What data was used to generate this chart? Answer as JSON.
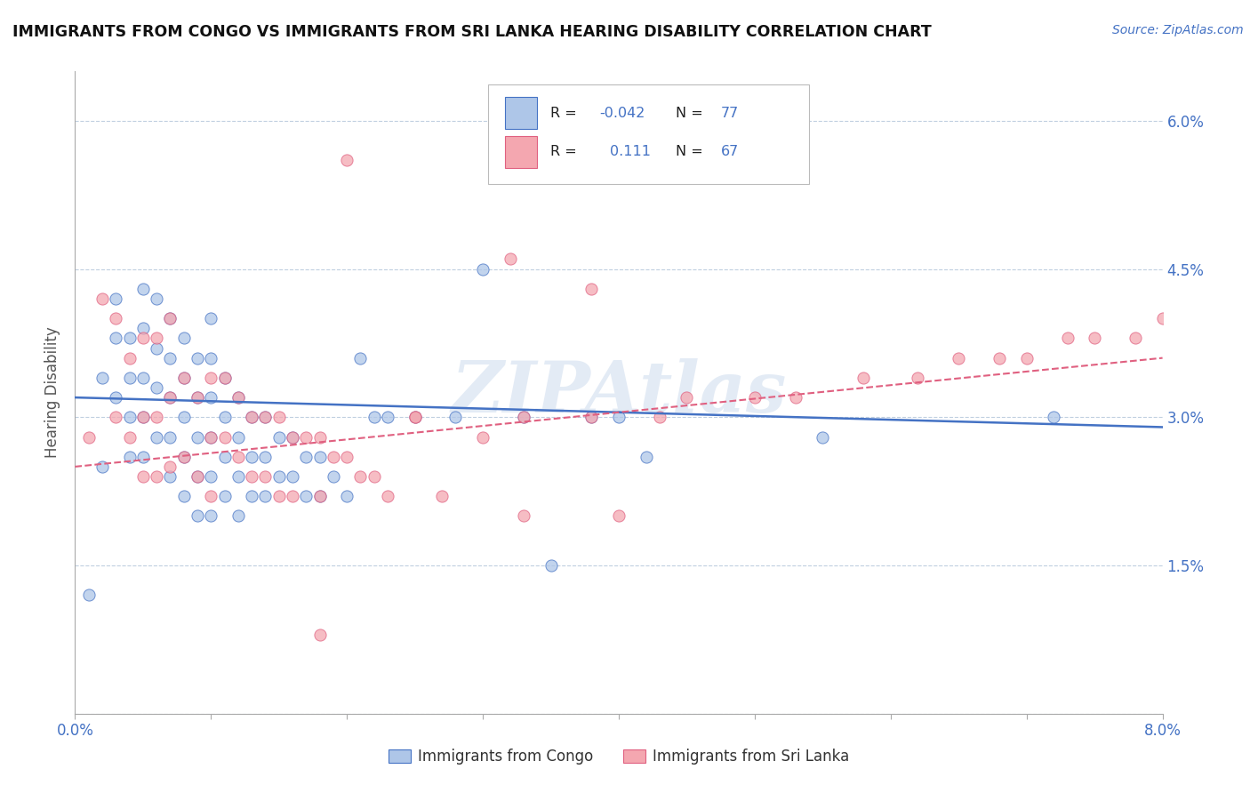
{
  "title": "IMMIGRANTS FROM CONGO VS IMMIGRANTS FROM SRI LANKA HEARING DISABILITY CORRELATION CHART",
  "source": "Source: ZipAtlas.com",
  "ylabel": "Hearing Disability",
  "xlim": [
    0.0,
    0.08
  ],
  "ylim": [
    0.0,
    0.065
  ],
  "ytick_positions": [
    0.0,
    0.015,
    0.03,
    0.045,
    0.06
  ],
  "yticklabels": [
    "",
    "1.5%",
    "3.0%",
    "4.5%",
    "6.0%"
  ],
  "congo_R": -0.042,
  "congo_N": 77,
  "srilanka_R": 0.111,
  "srilanka_N": 67,
  "congo_color": "#aec6e8",
  "srilanka_color": "#f4a7b0",
  "congo_line_color": "#4472c4",
  "srilanka_line_color": "#e06080",
  "background_color": "#ffffff",
  "watermark": "ZIPAtlas",
  "legend_label_congo": "Immigrants from Congo",
  "legend_label_srilanka": "Immigrants from Sri Lanka",
  "congo_x": [
    0.001,
    0.002,
    0.002,
    0.003,
    0.003,
    0.003,
    0.004,
    0.004,
    0.004,
    0.004,
    0.005,
    0.005,
    0.005,
    0.005,
    0.005,
    0.006,
    0.006,
    0.006,
    0.006,
    0.007,
    0.007,
    0.007,
    0.007,
    0.007,
    0.008,
    0.008,
    0.008,
    0.008,
    0.008,
    0.009,
    0.009,
    0.009,
    0.009,
    0.009,
    0.01,
    0.01,
    0.01,
    0.01,
    0.01,
    0.01,
    0.011,
    0.011,
    0.011,
    0.011,
    0.012,
    0.012,
    0.012,
    0.012,
    0.013,
    0.013,
    0.013,
    0.014,
    0.014,
    0.014,
    0.015,
    0.015,
    0.016,
    0.016,
    0.017,
    0.017,
    0.018,
    0.018,
    0.019,
    0.02,
    0.021,
    0.022,
    0.023,
    0.025,
    0.028,
    0.03,
    0.033,
    0.035,
    0.038,
    0.04,
    0.042,
    0.055,
    0.072
  ],
  "congo_y": [
    0.012,
    0.034,
    0.025,
    0.042,
    0.038,
    0.032,
    0.038,
    0.034,
    0.03,
    0.026,
    0.043,
    0.039,
    0.034,
    0.03,
    0.026,
    0.042,
    0.037,
    0.033,
    0.028,
    0.04,
    0.036,
    0.032,
    0.028,
    0.024,
    0.038,
    0.034,
    0.03,
    0.026,
    0.022,
    0.036,
    0.032,
    0.028,
    0.024,
    0.02,
    0.04,
    0.036,
    0.032,
    0.028,
    0.024,
    0.02,
    0.034,
    0.03,
    0.026,
    0.022,
    0.032,
    0.028,
    0.024,
    0.02,
    0.03,
    0.026,
    0.022,
    0.03,
    0.026,
    0.022,
    0.028,
    0.024,
    0.028,
    0.024,
    0.026,
    0.022,
    0.026,
    0.022,
    0.024,
    0.022,
    0.036,
    0.03,
    0.03,
    0.03,
    0.03,
    0.045,
    0.03,
    0.015,
    0.03,
    0.03,
    0.026,
    0.028,
    0.03
  ],
  "srilanka_x": [
    0.001,
    0.002,
    0.003,
    0.003,
    0.004,
    0.004,
    0.005,
    0.005,
    0.005,
    0.006,
    0.006,
    0.006,
    0.007,
    0.007,
    0.007,
    0.008,
    0.008,
    0.009,
    0.009,
    0.01,
    0.01,
    0.01,
    0.011,
    0.011,
    0.012,
    0.012,
    0.013,
    0.013,
    0.014,
    0.014,
    0.015,
    0.015,
    0.016,
    0.016,
    0.017,
    0.018,
    0.018,
    0.019,
    0.02,
    0.021,
    0.022,
    0.023,
    0.025,
    0.027,
    0.03,
    0.033,
    0.038,
    0.043,
    0.045,
    0.05,
    0.053,
    0.058,
    0.062,
    0.065,
    0.068,
    0.07,
    0.073,
    0.075,
    0.078,
    0.08,
    0.032,
    0.038,
    0.04,
    0.033,
    0.02,
    0.025,
    0.018
  ],
  "srilanka_y": [
    0.028,
    0.042,
    0.04,
    0.03,
    0.036,
    0.028,
    0.038,
    0.03,
    0.024,
    0.038,
    0.03,
    0.024,
    0.04,
    0.032,
    0.025,
    0.034,
    0.026,
    0.032,
    0.024,
    0.034,
    0.028,
    0.022,
    0.034,
    0.028,
    0.032,
    0.026,
    0.03,
    0.024,
    0.03,
    0.024,
    0.03,
    0.022,
    0.028,
    0.022,
    0.028,
    0.028,
    0.022,
    0.026,
    0.026,
    0.024,
    0.024,
    0.022,
    0.03,
    0.022,
    0.028,
    0.03,
    0.03,
    0.03,
    0.032,
    0.032,
    0.032,
    0.034,
    0.034,
    0.036,
    0.036,
    0.036,
    0.038,
    0.038,
    0.038,
    0.04,
    0.046,
    0.043,
    0.02,
    0.02,
    0.056,
    0.03,
    0.008
  ]
}
